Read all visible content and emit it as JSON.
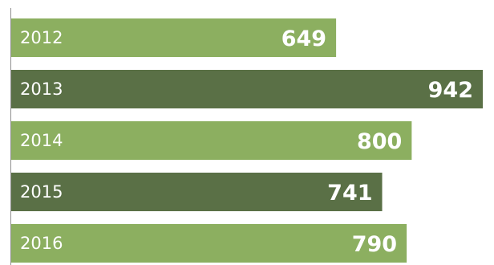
{
  "chart_data": {
    "type": "bar",
    "orientation": "horizontal",
    "categories": [
      "2012",
      "2013",
      "2014",
      "2015",
      "2016"
    ],
    "values": [
      649,
      942,
      800,
      741,
      790
    ],
    "xlim": [
      0,
      942
    ],
    "grid": false,
    "legend": "none",
    "colors": {
      "light": "#8caf60",
      "dark": "#5a7046",
      "label": "#ffffff",
      "axis": "#8f8f8f"
    },
    "bar_colors": [
      "light",
      "dark",
      "light",
      "dark",
      "light"
    ]
  }
}
